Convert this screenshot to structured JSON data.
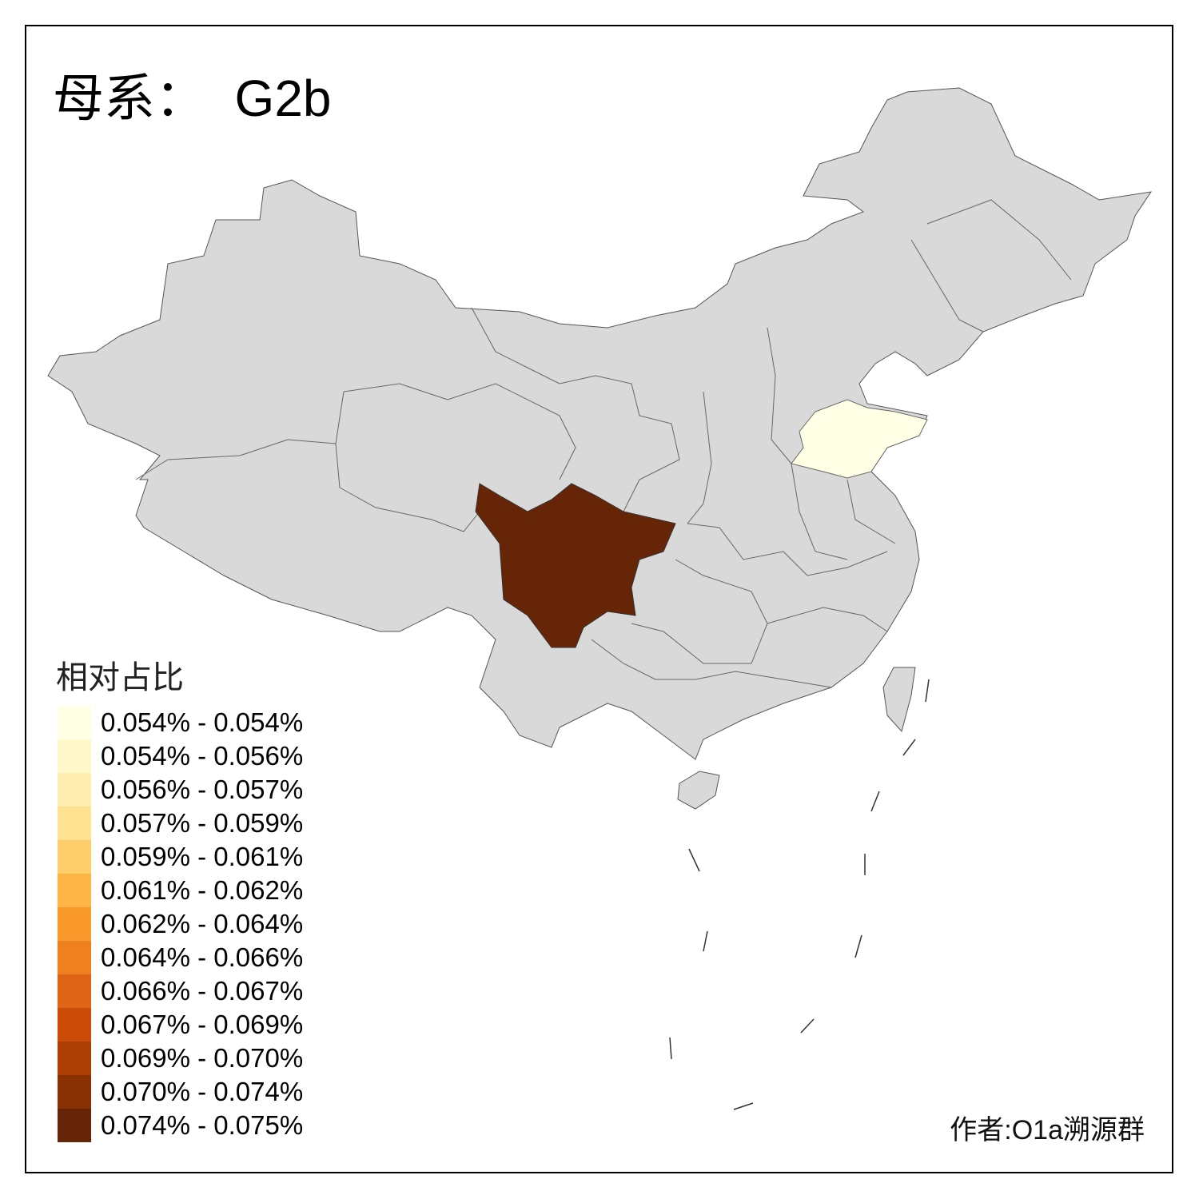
{
  "title": "母系：  G2b",
  "chart_data": {
    "type": "choropleth",
    "title": "母系：  G2b",
    "legend_title": "相对占比",
    "legend_placement": "bottom-left",
    "no_data_color": "#D9D9D9",
    "bins": [
      {
        "label": "0.054% - 0.054%",
        "color": "#FFFFE5"
      },
      {
        "label": "0.054% - 0.056%",
        "color": "#FFF8CA"
      },
      {
        "label": "0.056% - 0.057%",
        "color": "#FEEDAE"
      },
      {
        "label": "0.057% - 0.059%",
        "color": "#FEE191"
      },
      {
        "label": "0.059% - 0.061%",
        "color": "#FECE6A"
      },
      {
        "label": "0.061% - 0.062%",
        "color": "#FEB545"
      },
      {
        "label": "0.062% - 0.064%",
        "color": "#FB9A2C"
      },
      {
        "label": "0.064% - 0.066%",
        "color": "#F07F20"
      },
      {
        "label": "0.066% - 0.067%",
        "color": "#E06415"
      },
      {
        "label": "0.067% - 0.069%",
        "color": "#CB4B07"
      },
      {
        "label": "0.069% - 0.070%",
        "color": "#AC3E04"
      },
      {
        "label": "0.070% - 0.074%",
        "color": "#8A3104"
      },
      {
        "label": "0.074% - 0.075%",
        "color": "#662506"
      }
    ],
    "region_bins": {
      "sichuan": 12,
      "shandong": 0
    }
  },
  "credit": "作者:O1a溯源群"
}
